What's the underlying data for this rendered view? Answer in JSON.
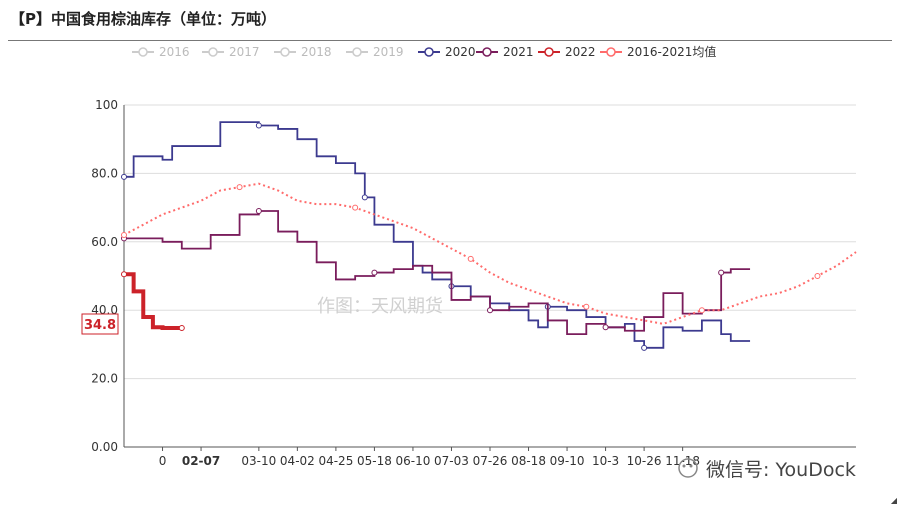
{
  "title": "【P】中国食用棕油库存（单位：万吨）",
  "watermark": "作图：天风期货",
  "brand": "微信号: YouDock",
  "chart_data": {
    "type": "line",
    "ylim": [
      0,
      100
    ],
    "y_ticks": [
      "0.00",
      "20.0",
      "40.0",
      "60.0",
      "80.0",
      "100"
    ],
    "x_ticks": [
      "0",
      "02-07",
      "03-10",
      "04-02",
      "04-25",
      "05-18",
      "06-10",
      "07-03",
      "07-26",
      "08-18",
      "09-10",
      "10-3",
      "10-26",
      "11-18"
    ],
    "highlight_tick": "02-07",
    "last_value_label": "34.8",
    "legend": [
      {
        "name": "2016",
        "color": "#cccccc",
        "active": false
      },
      {
        "name": "2017",
        "color": "#cccccc",
        "active": false
      },
      {
        "name": "2018",
        "color": "#cccccc",
        "active": false
      },
      {
        "name": "2019",
        "color": "#cccccc",
        "active": false
      },
      {
        "name": "2020",
        "color": "#3c3a8f",
        "active": true
      },
      {
        "name": "2021",
        "color": "#7a1d5c",
        "active": true
      },
      {
        "name": "2022",
        "color": "#cc2229",
        "active": true
      },
      {
        "name": "2016-2021均值",
        "color": "#ff6b6b",
        "active": true
      }
    ],
    "series": [
      {
        "name": "2020",
        "color": "#3c3a8f",
        "style": "step",
        "x": [
          0,
          1,
          4,
          5,
          7,
          10,
          14,
          16,
          18,
          20,
          22,
          24,
          25,
          26,
          28,
          30,
          31,
          32,
          34,
          36,
          38,
          40,
          42,
          43,
          44,
          46,
          48,
          50,
          52,
          53,
          54,
          56,
          58,
          60,
          62,
          63
        ],
        "y": [
          79,
          85,
          84,
          88,
          88,
          95,
          94,
          93,
          90,
          85,
          83,
          80,
          73,
          65,
          60,
          53,
          51,
          49,
          47,
          44,
          42,
          40,
          37,
          35,
          41,
          40,
          38,
          35,
          36,
          31,
          29,
          35,
          34,
          37,
          33,
          31
        ]
      },
      {
        "name": "2021",
        "color": "#7a1d5c",
        "style": "step",
        "x": [
          0,
          2,
          4,
          6,
          9,
          12,
          14,
          16,
          18,
          20,
          22,
          24,
          26,
          28,
          30,
          32,
          34,
          36,
          38,
          40,
          42,
          44,
          46,
          48,
          50,
          52,
          54,
          56,
          58,
          60,
          62,
          63
        ],
        "y": [
          61,
          61,
          60,
          58,
          62,
          68,
          69,
          63,
          60,
          54,
          49,
          50,
          51,
          52,
          53,
          51,
          43,
          44,
          40,
          41,
          42,
          37,
          33,
          36,
          35,
          34,
          38,
          45,
          39,
          40,
          51,
          52
        ]
      },
      {
        "name": "2022",
        "color": "#cc2229",
        "style": "step",
        "x": [
          0,
          1,
          2,
          3,
          4,
          5,
          6
        ],
        "y": [
          50.5,
          45.5,
          38,
          35,
          34.8,
          34.8,
          34.8
        ]
      },
      {
        "name": "2016-2021均值",
        "color": "#ff6b6b",
        "style": "dotted",
        "x": [
          0,
          2,
          4,
          6,
          8,
          10,
          12,
          14,
          16,
          18,
          20,
          22,
          24,
          26,
          28,
          30,
          32,
          34,
          36,
          38,
          40,
          42,
          44,
          46,
          48,
          50,
          52,
          54,
          56,
          58,
          60,
          62,
          64,
          66,
          68,
          70,
          72,
          74,
          76
        ],
        "y": [
          62,
          65,
          68,
          70,
          72,
          75,
          76,
          77,
          75,
          72,
          71,
          71,
          70,
          68,
          66,
          64,
          61,
          58,
          55,
          51,
          48,
          46,
          44,
          42,
          41,
          39,
          38,
          37,
          36,
          38,
          40,
          40,
          42,
          44,
          45,
          47,
          50,
          53,
          57
        ]
      }
    ]
  }
}
